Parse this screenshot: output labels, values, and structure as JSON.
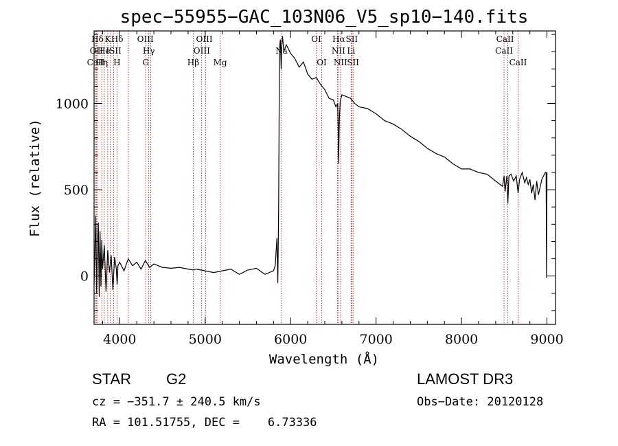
{
  "chart_data": {
    "type": "line",
    "title": "spec−55955−GAC_103N06_V5_sp10−140.fits",
    "xlabel": "Wavelength (Å)",
    "ylabel": "Flux (relative)",
    "xlim": [
      3700,
      9100
    ],
    "ylim": [
      -280,
      1420
    ],
    "x_ticks": [
      4000,
      5000,
      6000,
      7000,
      8000,
      9000
    ],
    "y_ticks": [
      0,
      500,
      1000
    ],
    "spectrum": {
      "x": [
        3700,
        3720,
        3730,
        3740,
        3750,
        3760,
        3770,
        3780,
        3790,
        3800,
        3820,
        3840,
        3860,
        3880,
        3900,
        3920,
        3940,
        3960,
        3970,
        3980,
        4000,
        4050,
        4100,
        4150,
        4200,
        4250,
        4300,
        4350,
        4400,
        4450,
        4500,
        4600,
        4700,
        4800,
        4861,
        4900,
        5000,
        5100,
        5200,
        5300,
        5400,
        5500,
        5600,
        5700,
        5800,
        5820,
        5840,
        5850,
        5860,
        5870,
        5880,
        5890,
        5896,
        5905,
        5920,
        5950,
        6000,
        6050,
        6100,
        6150,
        6200,
        6250,
        6300,
        6350,
        6400,
        6450,
        6500,
        6530,
        6550,
        6556,
        6560,
        6563,
        6566,
        6570,
        6580,
        6600,
        6650,
        6700,
        6750,
        6800,
        6900,
        7000,
        7100,
        7200,
        7300,
        7400,
        7500,
        7600,
        7700,
        7800,
        7900,
        8000,
        8100,
        8200,
        8300,
        8400,
        8480,
        8498,
        8510,
        8530,
        8542,
        8555,
        8580,
        8610,
        8640,
        8662,
        8680,
        8710,
        8740,
        8760,
        8780,
        8800,
        8820,
        8840,
        8860,
        8880,
        8900,
        8940,
        8960,
        8980,
        8990,
        8995,
        9000
      ],
      "y": [
        -50,
        350,
        -100,
        200,
        310,
        -120,
        260,
        -60,
        210,
        40,
        180,
        -90,
        150,
        20,
        120,
        -80,
        110,
        40,
        -50,
        60,
        80,
        30,
        100,
        60,
        80,
        40,
        90,
        50,
        70,
        60,
        50,
        45,
        50,
        40,
        35,
        40,
        30,
        20,
        30,
        40,
        10,
        35,
        45,
        10,
        30,
        60,
        220,
        -40,
        400,
        1320,
        1370,
        1200,
        1330,
        1390,
        1300,
        1340,
        1290,
        1260,
        1210,
        1240,
        1170,
        1140,
        1150,
        1110,
        1080,
        1030,
        1020,
        980,
        1000,
        880,
        700,
        650,
        800,
        900,
        1010,
        1050,
        1040,
        1030,
        1000,
        980,
        970,
        940,
        900,
        880,
        850,
        810,
        780,
        740,
        710,
        690,
        650,
        620,
        620,
        600,
        590,
        550,
        520,
        580,
        490,
        580,
        420,
        580,
        590,
        550,
        580,
        480,
        560,
        600,
        540,
        570,
        530,
        560,
        480,
        530,
        440,
        550,
        470,
        560,
        580,
        600,
        600,
        -10,
        600
      ]
    },
    "lines": [
      {
        "label": "Hδ",
        "x": 3740,
        "row": 1
      },
      {
        "label": "K",
        "x": 3860,
        "row": 1
      },
      {
        "label": "Hδ",
        "x": 3970,
        "row": 1
      },
      {
        "label": "OIII",
        "x": 4300,
        "row": 1
      },
      {
        "label": "OIII",
        "x": 4990,
        "row": 1
      },
      {
        "label": "OI",
        "x": 6300,
        "row": 1
      },
      {
        "label": "Hα",
        "x": 6563,
        "row": 1
      },
      {
        "label": "SII",
        "x": 6716,
        "row": 1
      },
      {
        "label": "CaII",
        "x": 8510,
        "row": 1
      },
      {
        "label": "OII",
        "x": 3727,
        "row": 2
      },
      {
        "label": "He",
        "x": 3820,
        "row": 2
      },
      {
        "label": "ISII",
        "x": 3930,
        "row": 2
      },
      {
        "label": "Hγ",
        "x": 4340,
        "row": 2
      },
      {
        "label": "OIII",
        "x": 4960,
        "row": 2
      },
      {
        "label": "Na",
        "x": 5893,
        "row": 2
      },
      {
        "label": "NII",
        "x": 6560,
        "row": 2
      },
      {
        "label": "Li",
        "x": 6708,
        "row": 2
      },
      {
        "label": "CaII",
        "x": 8498,
        "row": 2
      },
      {
        "label": "CaII",
        "x": 3720,
        "row": 3
      },
      {
        "label": "Hη",
        "x": 3790,
        "row": 3
      },
      {
        "label": "H",
        "x": 3968,
        "row": 3
      },
      {
        "label": "G",
        "x": 4304,
        "row": 3
      },
      {
        "label": "Hβ",
        "x": 4861,
        "row": 3
      },
      {
        "label": "Mg",
        "x": 5175,
        "row": 3
      },
      {
        "label": "OI",
        "x": 6364,
        "row": 3
      },
      {
        "label": "NII",
        "x": 6584,
        "row": 3
      },
      {
        "label": "SII",
        "x": 6731,
        "row": 3
      },
      {
        "label": "CaII",
        "x": 8662,
        "row": 3
      }
    ],
    "line_marker_x": [
      3720,
      3727,
      3740,
      3790,
      3820,
      3860,
      3890,
      3930,
      3968,
      4102,
      4304,
      4340,
      4363,
      4861,
      4959,
      5007,
      5175,
      5893,
      6300,
      6364,
      6548,
      6563,
      6584,
      6708,
      6716,
      6731,
      8498,
      8542,
      8662
    ],
    "line_marker_color": "#c00000",
    "spectrum_color": "#000000"
  },
  "info": {
    "object_class": "STAR",
    "subclass": "G2",
    "survey": "LAMOST DR3",
    "cz": "cz = −351.7 ± 240.5 km/s",
    "obs_date": "Obs−Date: 20120128",
    "coords": "RA = 101.51755, DEC =    6.73336"
  }
}
